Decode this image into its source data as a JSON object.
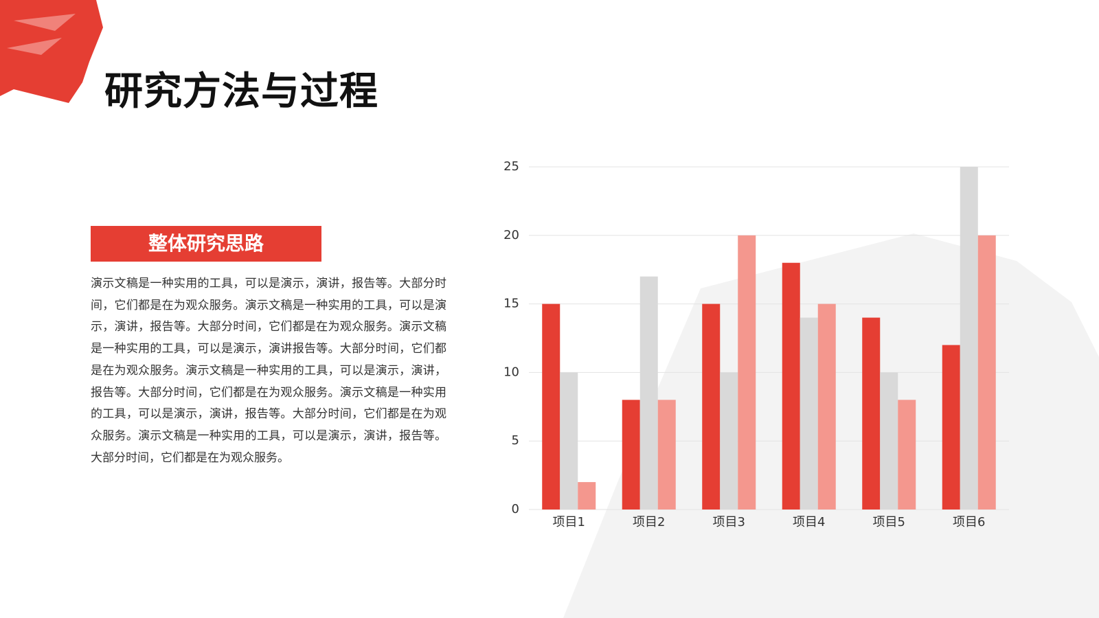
{
  "header": {
    "title": "研究方法与过程"
  },
  "content": {
    "heading": "整体研究思路",
    "body": "演示文稿是一种实用的工具，可以是演示，演讲，报告等。大部分时间，它们都是在为观众服务。演示文稿是一种实用的工具，可以是演示，演讲，报告等。大部分时间，它们都是在为观众服务。演示文稿是一种实用的工具，可以是演示，演讲报告等。大部分时间，它们都是在为观众服务。演示文稿是一种实用的工具，可以是演示，演讲，报告等。大部分时间，它们都是在为观众服务。演示文稿是一种实用的工具，可以是演示，演讲，报告等。大部分时间，它们都是在为观众服务。演示文稿是一种实用的工具，可以是演示，演讲，报告等。大部分时间，它们都是在为观众服务。"
  },
  "chart_data": {
    "type": "bar",
    "categories": [
      "项目1",
      "项目2",
      "项目3",
      "项目4",
      "项目5",
      "项目6"
    ],
    "series": [
      {
        "color": "#e53e33",
        "values": [
          15,
          8,
          15,
          18,
          14,
          12
        ]
      },
      {
        "color": "#d9d9d9",
        "values": [
          10,
          17,
          10,
          14,
          10,
          25
        ]
      },
      {
        "color": "#f4978e",
        "values": [
          2,
          8,
          20,
          15,
          8,
          20
        ]
      }
    ],
    "ylim": [
      0,
      25
    ],
    "yticks": [
      0,
      5,
      10,
      15,
      20,
      25
    ],
    "grid": true
  }
}
